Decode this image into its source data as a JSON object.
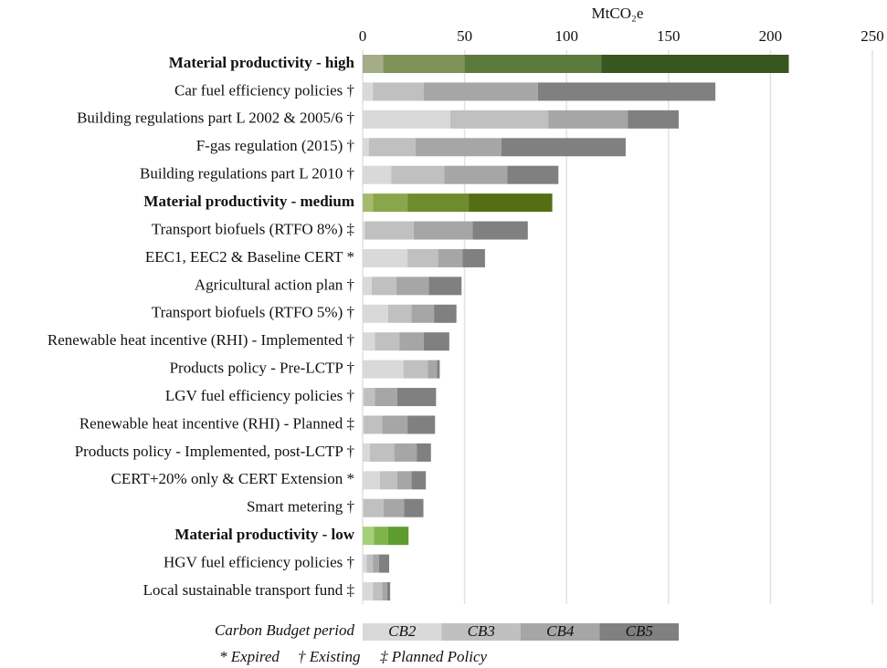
{
  "chart_data": {
    "type": "stacked-bar-horizontal",
    "x_label": "MtCO₂e",
    "categories": [
      "Material productivity - high",
      "Car fuel efficiency policies †",
      "Building regulations part L 2002 & 2005/6 †",
      "F-gas regulation (2015) †",
      "Building regulations part L 2010 †",
      "Material productivity - medium",
      "Transport biofuels (RTFO 8%) ‡",
      "EEC1, EEC2 & Baseline CERT *",
      "Agricultural action plan †",
      "Transport biofuels (RTFO 5%) †",
      "Renewable heat incentive (RHI) - Implemented †",
      "Products policy - Pre-LCTP †",
      "LGV fuel efficiency policies †",
      "Renewable heat incentive (RHI) - Planned ‡",
      "Products policy - Implemented, post-LCTP †",
      "CERT+20% only & CERT Extension *",
      "Smart metering †",
      "Material productivity - low",
      "HGV fuel efficiency policies †",
      "Local sustainable transport fund ‡"
    ],
    "series": [
      {
        "name": "CB2",
        "color": "#d9d9d9",
        "values": [
          10,
          5,
          43,
          3,
          14,
          5,
          1,
          22,
          4.5,
          12.5,
          6,
          20,
          0.5,
          0.5,
          3.5,
          8.5,
          0.3,
          5.5,
          2,
          5
        ]
      },
      {
        "name": "CB3",
        "color": "#c0c0c0",
        "values": [
          40,
          25,
          48,
          23,
          26,
          17,
          24,
          15,
          12,
          11.5,
          12,
          12,
          5.5,
          9,
          12,
          8.5,
          10,
          7,
          3,
          4.5
        ]
      },
      {
        "name": "CB4",
        "color": "#a6a6a6",
        "values": [
          67,
          56,
          39,
          42,
          31,
          30,
          29,
          12,
          16,
          11,
          12,
          4.5,
          11,
          12.5,
          11,
          7,
          10,
          10,
          3,
          2.5
        ]
      },
      {
        "name": "CB5",
        "color": "#808080",
        "values": [
          92,
          87,
          25,
          61,
          25,
          41,
          27,
          11,
          16,
          11,
          12.5,
          1.3,
          19,
          13.5,
          7,
          7,
          9.5,
          0,
          5,
          1.5
        ]
      }
    ],
    "row_colors": [
      [
        "#a4ad88",
        "#7f9257",
        "#5b7a3b",
        "#38561f"
      ],
      null,
      null,
      null,
      null,
      [
        "#a6ba6f",
        "#8aa64a",
        "#6e8c2b",
        "#546e14"
      ],
      null,
      null,
      null,
      null,
      null,
      null,
      null,
      null,
      null,
      null,
      null,
      [
        "#a4d07a",
        "#80b34c",
        "#5e9c2e",
        "#4a8a1e"
      ],
      null,
      null
    ],
    "xlim": [
      0,
      250
    ],
    "xticks": [
      0,
      50,
      100,
      150,
      200,
      250
    ],
    "grid": true,
    "legend_title": "Carbon Budget period",
    "footnotes": [
      "* Expired",
      "† Existing",
      "‡ Planned Policy"
    ]
  }
}
